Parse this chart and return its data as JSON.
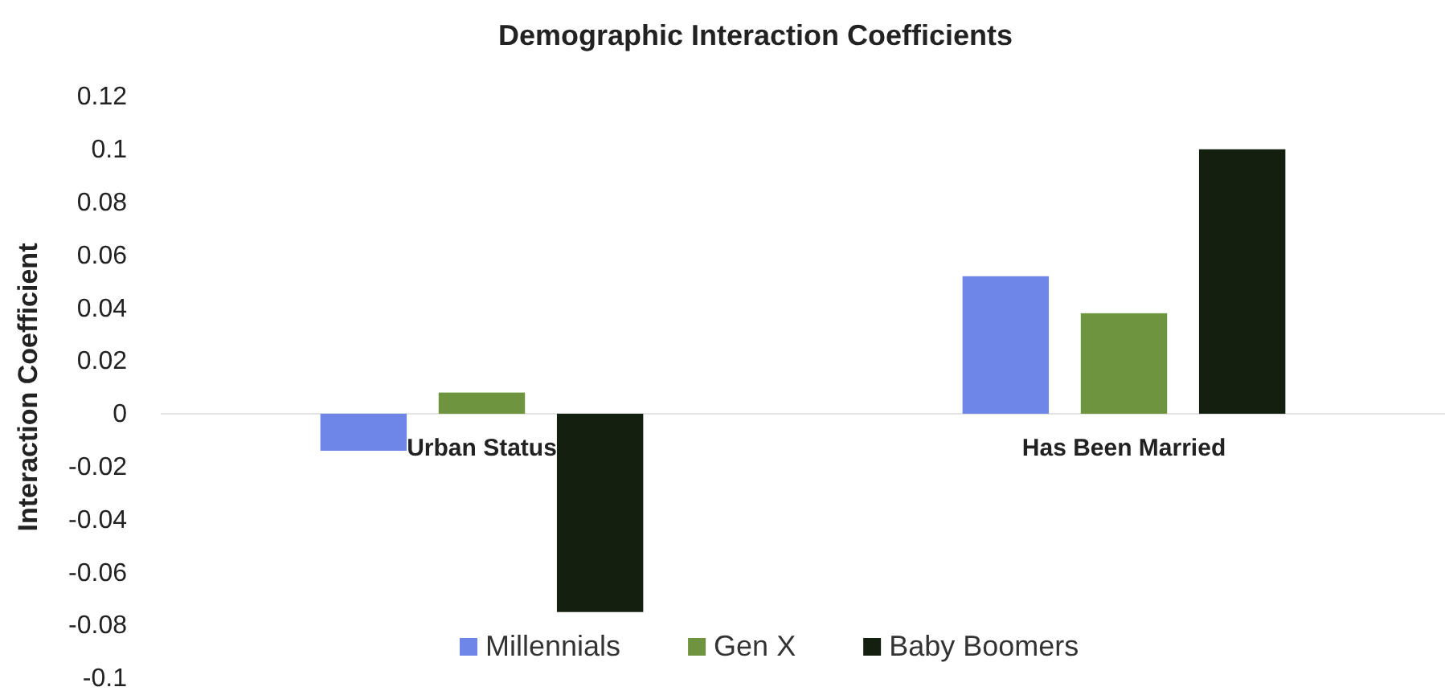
{
  "chart_data": {
    "type": "bar",
    "title": "Demographic Interaction Coefficients",
    "ylabel": "Interaction Coefficient",
    "categories": [
      "Urban Status",
      "Has Been Married"
    ],
    "series": [
      {
        "name": "Millennials",
        "color": "#6d86e8",
        "values": [
          -0.014,
          0.052
        ]
      },
      {
        "name": "Gen X",
        "color": "#6f9440",
        "values": [
          0.008,
          0.038
        ]
      },
      {
        "name": "Baby Boomers",
        "color": "#14200f",
        "values": [
          -0.075,
          0.1
        ]
      }
    ],
    "ylim": [
      -0.1,
      0.12
    ],
    "yticks": [
      0.12,
      0.1,
      0.08,
      0.06,
      0.04,
      0.02,
      0,
      -0.02,
      -0.04,
      -0.06,
      -0.08,
      -0.1
    ],
    "legend": "bottom"
  }
}
